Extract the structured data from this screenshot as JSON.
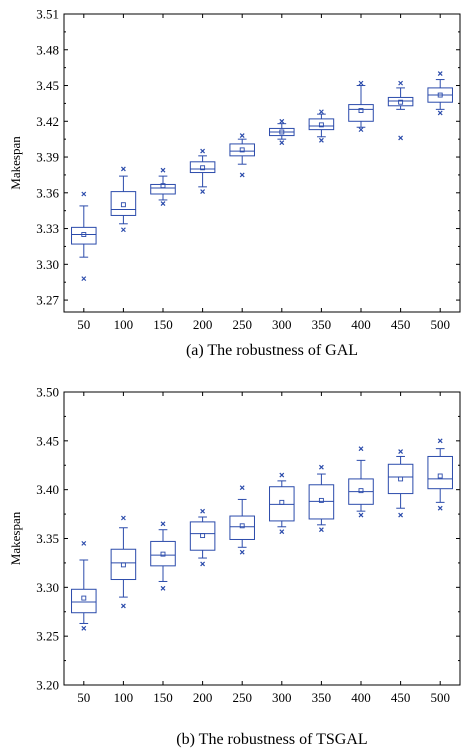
{
  "chart_data": [
    {
      "type": "box",
      "ylabel": "Makespan",
      "caption": "(a) The robustness of GAL",
      "categories": [
        "50",
        "100",
        "150",
        "200",
        "250",
        "300",
        "350",
        "400",
        "450",
        "500"
      ],
      "yticks": [
        "3.27",
        "3.30",
        "3.33",
        "3.36",
        "3.39",
        "3.42",
        "3.45",
        "3.48",
        "3.51"
      ],
      "ylim": [
        3.26,
        3.51
      ],
      "boxes": [
        {
          "category": "50",
          "q1": 3.317,
          "median": 3.325,
          "q3": 3.331,
          "mean": 3.325,
          "whisker_low": 3.306,
          "whisker_high": 3.349,
          "outliers": [
            3.288,
            3.359
          ]
        },
        {
          "category": "100",
          "q1": 3.341,
          "median": 3.346,
          "q3": 3.361,
          "mean": 3.35,
          "whisker_low": 3.334,
          "whisker_high": 3.374,
          "outliers": [
            3.329,
            3.38
          ]
        },
        {
          "category": "150",
          "q1": 3.359,
          "median": 3.364,
          "q3": 3.367,
          "mean": 3.366,
          "whisker_low": 3.354,
          "whisker_high": 3.374,
          "outliers": [
            3.351,
            3.379
          ]
        },
        {
          "category": "200",
          "q1": 3.377,
          "median": 3.38,
          "q3": 3.386,
          "mean": 3.381,
          "whisker_low": 3.365,
          "whisker_high": 3.391,
          "outliers": [
            3.361,
            3.395
          ]
        },
        {
          "category": "250",
          "q1": 3.391,
          "median": 3.395,
          "q3": 3.401,
          "mean": 3.396,
          "whisker_low": 3.384,
          "whisker_high": 3.405,
          "outliers": [
            3.375,
            3.408
          ]
        },
        {
          "category": "300",
          "q1": 3.408,
          "median": 3.411,
          "q3": 3.414,
          "mean": 3.411,
          "whisker_low": 3.405,
          "whisker_high": 3.418,
          "outliers": [
            3.402,
            3.42
          ]
        },
        {
          "category": "350",
          "q1": 3.413,
          "median": 3.416,
          "q3": 3.422,
          "mean": 3.417,
          "whisker_low": 3.407,
          "whisker_high": 3.426,
          "outliers": [
            3.404,
            3.428
          ]
        },
        {
          "category": "400",
          "q1": 3.42,
          "median": 3.43,
          "q3": 3.434,
          "mean": 3.429,
          "whisker_low": 3.415,
          "whisker_high": 3.45,
          "outliers": [
            3.413,
            3.452
          ]
        },
        {
          "category": "450",
          "q1": 3.433,
          "median": 3.437,
          "q3": 3.44,
          "mean": 3.436,
          "whisker_low": 3.43,
          "whisker_high": 3.448,
          "outliers": [
            3.406,
            3.452
          ]
        },
        {
          "category": "500",
          "q1": 3.436,
          "median": 3.442,
          "q3": 3.448,
          "mean": 3.442,
          "whisker_low": 3.43,
          "whisker_high": 3.455,
          "outliers": [
            3.427,
            3.46
          ]
        }
      ]
    },
    {
      "type": "box",
      "ylabel": "Makespan",
      "caption": "(b) The robustness of TSGAL",
      "categories": [
        "50",
        "100",
        "150",
        "200",
        "250",
        "300",
        "350",
        "400",
        "450",
        "500"
      ],
      "yticks": [
        "3.20",
        "3.25",
        "3.30",
        "3.35",
        "3.40",
        "3.45",
        "3.50"
      ],
      "ylim": [
        3.2,
        3.5
      ],
      "boxes": [
        {
          "category": "50",
          "q1": 3.274,
          "median": 3.285,
          "q3": 3.298,
          "mean": 3.289,
          "whisker_low": 3.263,
          "whisker_high": 3.328,
          "outliers": [
            3.258,
            3.345
          ]
        },
        {
          "category": "100",
          "q1": 3.308,
          "median": 3.325,
          "q3": 3.339,
          "mean": 3.323,
          "whisker_low": 3.29,
          "whisker_high": 3.361,
          "outliers": [
            3.281,
            3.371
          ]
        },
        {
          "category": "150",
          "q1": 3.322,
          "median": 3.333,
          "q3": 3.347,
          "mean": 3.334,
          "whisker_low": 3.306,
          "whisker_high": 3.359,
          "outliers": [
            3.299,
            3.365
          ]
        },
        {
          "category": "200",
          "q1": 3.338,
          "median": 3.355,
          "q3": 3.367,
          "mean": 3.353,
          "whisker_low": 3.33,
          "whisker_high": 3.372,
          "outliers": [
            3.324,
            3.378
          ]
        },
        {
          "category": "250",
          "q1": 3.349,
          "median": 3.362,
          "q3": 3.373,
          "mean": 3.363,
          "whisker_low": 3.341,
          "whisker_high": 3.39,
          "outliers": [
            3.336,
            3.402
          ]
        },
        {
          "category": "300",
          "q1": 3.368,
          "median": 3.385,
          "q3": 3.403,
          "mean": 3.387,
          "whisker_low": 3.362,
          "whisker_high": 3.409,
          "outliers": [
            3.357,
            3.415
          ]
        },
        {
          "category": "350",
          "q1": 3.37,
          "median": 3.388,
          "q3": 3.405,
          "mean": 3.389,
          "whisker_low": 3.364,
          "whisker_high": 3.416,
          "outliers": [
            3.359,
            3.423
          ]
        },
        {
          "category": "400",
          "q1": 3.385,
          "median": 3.398,
          "q3": 3.411,
          "mean": 3.399,
          "whisker_low": 3.378,
          "whisker_high": 3.43,
          "outliers": [
            3.374,
            3.442
          ]
        },
        {
          "category": "450",
          "q1": 3.396,
          "median": 3.413,
          "q3": 3.426,
          "mean": 3.411,
          "whisker_low": 3.381,
          "whisker_high": 3.434,
          "outliers": [
            3.374,
            3.439
          ]
        },
        {
          "category": "500",
          "q1": 3.401,
          "median": 3.411,
          "q3": 3.434,
          "mean": 3.414,
          "whisker_low": 3.387,
          "whisker_high": 3.442,
          "outliers": [
            3.381,
            3.45
          ]
        }
      ]
    }
  ]
}
